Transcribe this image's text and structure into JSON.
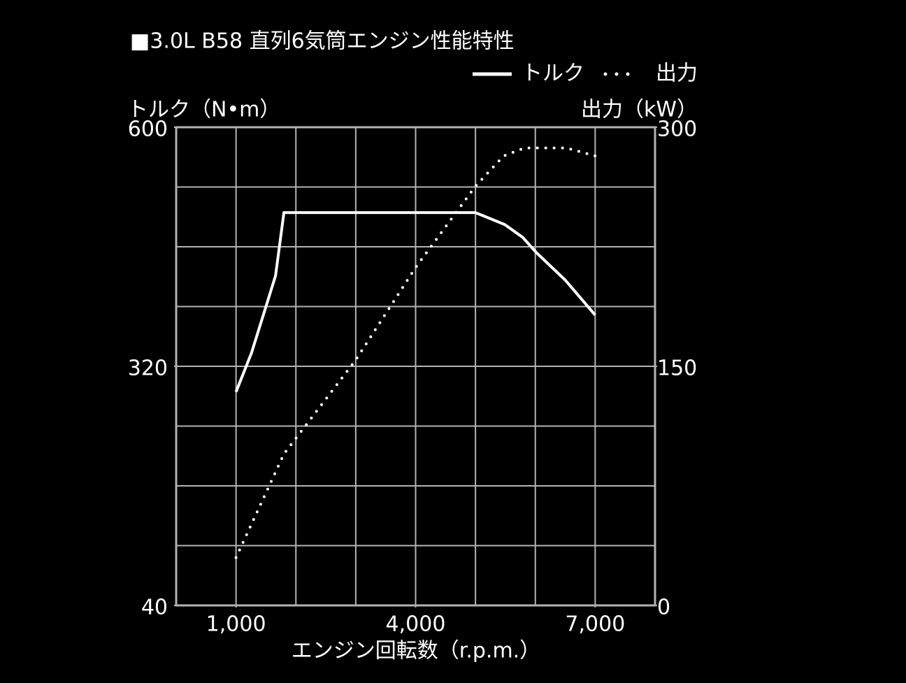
{
  "chart_data": {
    "type": "line",
    "title": "■3.0L B58 直列6気筒エンジン性能特性",
    "x_label": "エンジン回転数（r.p.m.）",
    "y_label": "トルク（N•m）",
    "y2_label": "出力（kW）",
    "xlim": [
      0,
      8000
    ],
    "xticks": [
      {
        "value": 1000,
        "label": "1,000"
      },
      {
        "value": 4000,
        "label": "4,000"
      },
      {
        "value": 7000,
        "label": "7,000"
      }
    ],
    "ylim": [
      40,
      600
    ],
    "yticks": [
      40,
      320,
      600
    ],
    "y2lim": [
      0,
      300
    ],
    "y2ticks": [
      0,
      150,
      300
    ],
    "grid": true,
    "series": [
      {
        "name": "トルク",
        "color": "#ffffff",
        "style": "solid",
        "x": [
          1000,
          1260,
          1660,
          1800,
          5000,
          5490,
          5790,
          6020,
          6500,
          7000
        ],
        "values": [
          290,
          336,
          426,
          500,
          500,
          486,
          471,
          453,
          421,
          380
        ]
      },
      {
        "name": "出力",
        "color": "#ffffff",
        "style": "dotted",
        "axis": "y2",
        "x": [
          1000,
          1800,
          3000,
          4000,
          5000,
          5470,
          5820,
          6520,
          7000
        ],
        "values": [
          30,
          95,
          154,
          212,
          263,
          282,
          287,
          287,
          282
        ]
      }
    ]
  }
}
